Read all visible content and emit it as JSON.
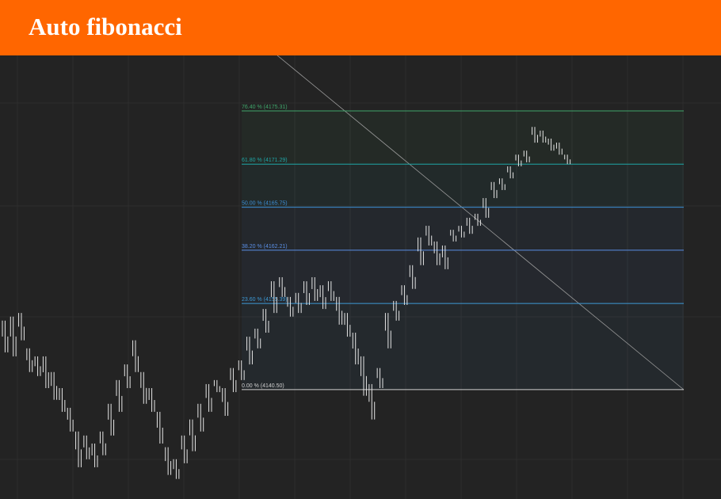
{
  "header": {
    "title": "Auto fibonacci"
  },
  "chart_data": {
    "type": "range-bars",
    "ylim": [
      -30,
      91.6
    ],
    "color": "#e6e6e6",
    "levels": [
      {
        "percent": 76.4,
        "label": "76.40 % (4175.31)",
        "color": "#3fa66b"
      },
      {
        "percent": 61.8,
        "label": "61.80 % (4171.29)",
        "color": "#1fa5a5"
      },
      {
        "percent": 50,
        "label": "50.00 % (4165.75)",
        "color": "#3d8fd6"
      },
      {
        "percent": 38.2,
        "label": "38.20 % (4162.21)",
        "color": "#5a8fe6"
      },
      {
        "percent": 23.6,
        "label": "23.60 % (4155.39)",
        "color": "#3d9ad6"
      },
      {
        "percent": 0,
        "label": "0.00 % (4140.50)",
        "color": "#d0d0d0"
      }
    ],
    "high": [
      18.9,
      20.0,
      21.0,
      11.3,
      9.1,
      9.1,
      4.8,
      0.4,
      -5.0,
      -11.5,
      -12.6,
      -14.8,
      -11.5,
      -3.9,
      2.6,
      6.9,
      13.5,
      4.8,
      0.4,
      -6.1,
      -15.8,
      -19.1,
      -12.6,
      -8.2,
      -3.9,
      1.5,
      2.6,
      0.4,
      5.9,
      8.0,
      14.5,
      16.7,
      22.1,
      29.7,
      30.8,
      25.4,
      26.5,
      29.7,
      30.8,
      28.6,
      29.7,
      25.4,
      21.0,
      15.6,
      9.1,
      1.5,
      5.9,
      21.0,
      24.3,
      28.6,
      34.1,
      41.7,
      44.9,
      40.6,
      39.5,
      43.8,
      44.9,
      47.1,
      48.2,
      52.5,
      56.9,
      57.9,
      61.2,
      64.4,
      65.5,
      72.0,
      71.0,
      68.8,
      67.7,
      64.4
    ],
    "low": [
      10.2,
      9.1,
      13.5,
      4.8,
      3.7,
      0.4,
      -2.8,
      -6.1,
      -11.5,
      -21.3,
      -19.1,
      -21.3,
      -18.0,
      -12.6,
      -6.1,
      0.4,
      4.8,
      -3.9,
      -6.1,
      -14.8,
      -23.4,
      -24.5,
      -20.2,
      -16.9,
      -11.5,
      -6.1,
      -0.7,
      -7.2,
      -0.7,
      2.6,
      6.9,
      11.3,
      15.6,
      21.0,
      25.4,
      20.0,
      21.0,
      23.2,
      24.3,
      22.1,
      24.3,
      17.8,
      14.5,
      6.9,
      -1.7,
      -8.2,
      0.4,
      11.3,
      18.9,
      23.2,
      27.6,
      34.1,
      39.5,
      34.1,
      33.0,
      40.6,
      41.7,
      42.7,
      44.9,
      47.1,
      52.5,
      54.7,
      57.9,
      61.2,
      62.3,
      67.7,
      67.7,
      65.5,
      64.4,
      61.8
    ]
  }
}
